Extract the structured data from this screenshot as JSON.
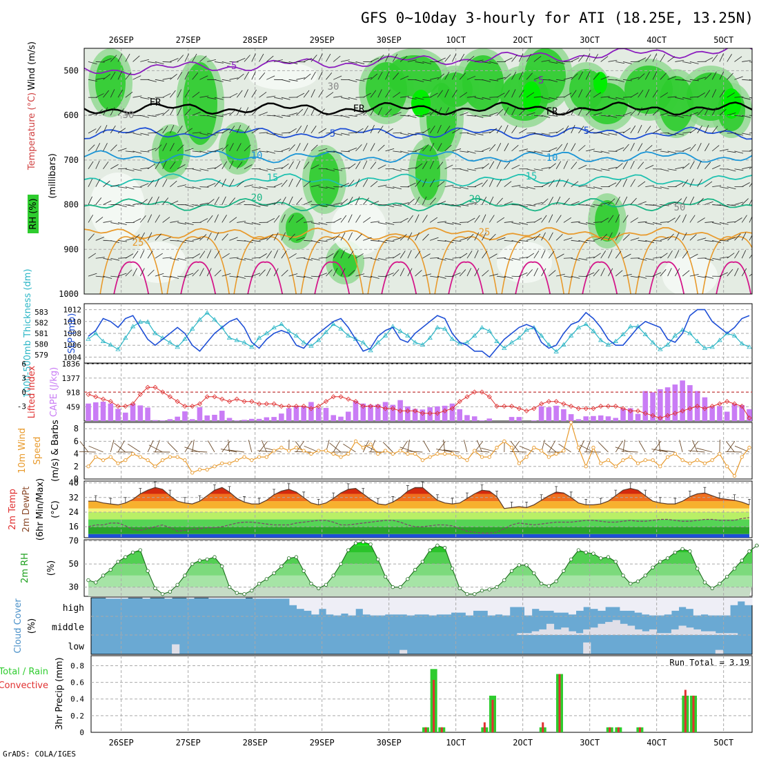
{
  "title": "GFS 0~10day 3-hourly for ATI (18.25E, 13.25N)",
  "footer": "GrADS: COLA/IGES",
  "colors": {
    "purple": "#8b1dbe",
    "blue": "#1e4fd6",
    "cyan": "#2bb6c6",
    "orange": "#e89a2c",
    "magenta": "#d4168a",
    "red": "#e03030",
    "lavender": "#c97cf5",
    "green": "#2ecc2e",
    "brightgreen": "#00ee00",
    "grid": "#a9a9a9",
    "cloudblue": "#6aa9d3",
    "cloudwhite": "#eeeef6"
  },
  "days_top": [
    "26SEP",
    "27SEP",
    "28SEP",
    "29SEP",
    "30SEP",
    "1OCT",
    "2OCT",
    "3OCT",
    "4OCT",
    "5OCT"
  ],
  "days_bottom": [
    "26SEP",
    "27SEP",
    "28SEP",
    "29SEP",
    "30SEP",
    "1OCT",
    "2OCT",
    "3OCT",
    "4OCT",
    "5OCT"
  ],
  "chart_data": [
    {
      "type": "heatmap",
      "name": "upper_air",
      "ylabel": "Wind (m/s) Temperature (°C) RH (%) (millibars)",
      "y_ticks": [
        "500",
        "600",
        "700",
        "800",
        "900",
        "1000"
      ],
      "ylim": [
        450,
        1000
      ],
      "legend_rh": "RH (%)",
      "contour_labels": [
        "-5",
        "FR",
        "5",
        "10",
        "15",
        "20",
        "25",
        "30",
        "50"
      ],
      "isotherm_levels_mb": {
        "-5": 500,
        "0": 585,
        "5": 640,
        "10": 693,
        "15": 745,
        "20": 800,
        "25": 865
      }
    },
    {
      "type": "line",
      "name": "slp_thickness",
      "ylabel_left": "1000-500mb Thickness (dm)",
      "ylabel_right": "SLP (mb)",
      "thickness_ticks": [
        "583",
        "582",
        "581",
        "580",
        "579"
      ],
      "slp_ticks": [
        "1012",
        "1010",
        "1008",
        "1006",
        "1004"
      ],
      "ylim_slp": [
        1003,
        1013
      ],
      "slp": [
        1007.5,
        1008.5,
        1010.5,
        1010,
        1009,
        1010.5,
        1011,
        1009,
        1007,
        1006,
        1007,
        1008,
        1009,
        1008,
        1006,
        1005,
        1006.5,
        1008,
        1009,
        1010,
        1010.5,
        1009,
        1006.5,
        1005.5,
        1007,
        1008,
        1008.5,
        1008,
        1006,
        1005.5,
        1007,
        1008,
        1009,
        1010,
        1010.5,
        1009,
        1007,
        1005,
        1005.5,
        1007.5,
        1008.5,
        1009,
        1007,
        1006.5,
        1008,
        1009,
        1010,
        1011,
        1010.5,
        1008,
        1006.5,
        1006,
        1005,
        1005,
        1004,
        1005.5,
        1007,
        1008,
        1009,
        1009.5,
        1009,
        1006.5,
        1005.5,
        1006,
        1008,
        1009.5,
        1010,
        1011.5,
        1010.5,
        1009,
        1007,
        1006,
        1006,
        1007.5,
        1009,
        1010,
        1009.5,
        1009,
        1007,
        1006.5,
        1008,
        1011,
        1012,
        1012,
        1010,
        1009,
        1008,
        1009,
        1010.5,
        1011
      ],
      "thickness": [
        580.5,
        581,
        580.3,
        580,
        579.6,
        580.6,
        581.6,
        582,
        582,
        581,
        580.6,
        580.2,
        579.8,
        580.5,
        581.4,
        582.2,
        582.8,
        582.2,
        581.5,
        580.6,
        580.4,
        580.2,
        579.8,
        580.6,
        581,
        581.5,
        581.8,
        581.2,
        580.8,
        580.2,
        579.9,
        580.4,
        581.1,
        581.8,
        581.4,
        580.8,
        580.5,
        580.2,
        579.5,
        580.2,
        580.8,
        581.6,
        581.2,
        580.8,
        580.2,
        580,
        580.6,
        581.5,
        581.4,
        580.5,
        580.1,
        580.2,
        580.8,
        581.5,
        581.2,
        580.3,
        579.7,
        580.2,
        580.6,
        581.3,
        581.5,
        580.8,
        580,
        579.4,
        580,
        580.8,
        581.5,
        581.8,
        581.2,
        580.4,
        580,
        580.3,
        580.9,
        581.6,
        581.6,
        580.9,
        580.2,
        579.6,
        580,
        580.8,
        581.3,
        581,
        580.3,
        579.7,
        579.8,
        580.4,
        581,
        580.8,
        580.1,
        579.8
      ]
    },
    {
      "type": "bar",
      "name": "cape_li",
      "ylabel_left": "Lifted Index",
      "ylabel_right": "CAPE (J/kg)",
      "li_ticks": [
        "-3",
        "0",
        "3",
        "6"
      ],
      "cape_ticks": [
        "1836",
        "1377",
        "918",
        "459"
      ],
      "ylim_cape": [
        0,
        1836
      ],
      "cape": [
        560,
        600,
        620,
        560,
        390,
        270,
        560,
        500,
        430,
        30,
        20,
        60,
        140,
        310,
        60,
        440,
        180,
        200,
        330,
        100,
        20,
        40,
        70,
        70,
        120,
        130,
        240,
        410,
        480,
        480,
        610,
        430,
        420,
        190,
        140,
        300,
        640,
        560,
        520,
        530,
        610,
        520,
        670,
        470,
        390,
        370,
        440,
        470,
        490,
        560,
        380,
        190,
        150,
        20,
        80,
        0,
        0,
        130,
        130,
        0,
        20,
        470,
        440,
        490,
        380,
        220,
        60,
        150,
        160,
        180,
        150,
        100,
        400,
        410,
        230,
        960,
        920,
        1020,
        1080,
        1170,
        1300,
        1150,
        960,
        760,
        460,
        480,
        300,
        550,
        510,
        380
      ],
      "li": [
        -0.5,
        -1,
        -1.5,
        -2,
        -3,
        -3,
        -2.5,
        -0.5,
        1,
        1,
        0,
        -1,
        -2,
        -3,
        -3,
        -2.5,
        -1,
        -1,
        -1.5,
        -2,
        -1.5,
        -2,
        -2,
        -2.5,
        -2.5,
        -2.5,
        -3,
        -3,
        -3,
        -3,
        -3.5,
        -3,
        -2,
        -1,
        -1,
        -1.5,
        -2,
        -3,
        -3,
        -3,
        -3.5,
        -3.5,
        -4,
        -4,
        -4,
        -4.5,
        -4.5,
        -4.5,
        -4,
        -3.5,
        -2,
        -1,
        0,
        0,
        -1,
        -3,
        -3,
        -3,
        -3.5,
        -4,
        -3.5,
        -2.5,
        -2,
        -2,
        -2.5,
        -3,
        -3.5,
        -3.5,
        -3.5,
        -3,
        -3,
        -3,
        -3.5,
        -4,
        -4,
        -4.5,
        -5,
        -5.5,
        -5,
        -4.5,
        -4,
        -3.5,
        -3,
        -3.5,
        -3,
        -2.5,
        -2,
        -2.5,
        -3,
        -5.5
      ]
    },
    {
      "type": "line",
      "name": "wind10m",
      "ylabel": "10m Wind Speed & Barbs (m/s)",
      "y_ticks": [
        "8",
        "6",
        "4",
        "2",
        "0"
      ],
      "ylim": [
        0,
        9
      ],
      "speed": [
        2,
        3.5,
        3,
        3.5,
        2.5,
        3,
        4,
        3.5,
        3,
        2,
        3,
        3.5,
        3.5,
        3,
        1,
        1.5,
        1.5,
        2,
        2.5,
        2.5,
        3,
        3.5,
        3,
        3.5,
        3.5,
        4.5,
        5,
        4.5,
        5,
        4.5,
        4,
        4.5,
        4.5,
        4,
        3.5,
        4,
        6,
        5,
        5.5,
        4,
        4.5,
        4,
        4.5,
        4,
        4,
        3,
        3.5,
        4,
        4,
        4,
        3.5,
        3,
        4.5,
        3.5,
        3.5,
        5,
        6,
        5,
        2.5,
        3.5,
        5,
        4.5,
        3.5,
        4,
        4.5,
        9,
        5,
        2,
        5,
        2.5,
        3,
        2,
        3,
        3.5,
        2.5,
        3,
        3,
        2,
        3.5,
        4,
        3,
        2.5,
        3,
        2.5,
        3,
        4,
        2,
        0.5,
        3.5,
        5
      ]
    },
    {
      "type": "area",
      "name": "temp2m",
      "ylabel": "2m Temp 2m DewPt (6hr Min/Max) (°C)",
      "y_ticks": [
        "40",
        "32",
        "24",
        "16"
      ],
      "ylim": [
        10,
        41
      ],
      "temp": [
        30,
        30,
        29,
        28.5,
        28,
        29,
        31,
        34,
        36,
        37.5,
        36.5,
        33,
        30,
        29,
        28.5,
        30,
        33,
        36,
        37.5,
        35,
        31.5,
        29.5,
        28.5,
        28.5,
        30.5,
        33.5,
        35.5,
        36.5,
        35,
        32,
        29,
        28,
        29,
        31.5,
        34.5,
        36.5,
        37,
        34,
        31,
        28.5,
        28,
        29.5,
        32,
        35.5,
        37.5,
        37.5,
        34,
        30.5,
        29,
        28.5,
        29,
        31.5,
        34,
        36,
        35.5,
        32.5,
        26,
        26.5,
        27,
        26.5,
        28,
        30.5,
        33,
        35,
        34.5,
        32,
        29,
        28,
        28,
        28.5,
        30,
        33,
        36,
        37,
        36,
        33,
        30,
        29,
        28.5,
        28.5,
        30,
        32.5,
        34,
        34.5,
        33,
        31.5,
        31,
        30.5,
        29.5,
        28
      ],
      "dewpoint": [
        16,
        17,
        17,
        18,
        18,
        16.5,
        14.5,
        14,
        15,
        16,
        17,
        15.5,
        13.5,
        14,
        14.5,
        15,
        15.5,
        15.5,
        16,
        17,
        18,
        18.5,
        18.5,
        18,
        17.5,
        17,
        17,
        17,
        18,
        18.5,
        19,
        19.5,
        19.5,
        18.5,
        17,
        17,
        17.5,
        18,
        18.5,
        19,
        19.5,
        19.5,
        18.5,
        17,
        16,
        16,
        16.5,
        17,
        17,
        16.5,
        15,
        13.5,
        13,
        12.5,
        12.5,
        13,
        15,
        17,
        18,
        17.5,
        17,
        17.5,
        18,
        18.5,
        18.5,
        18.5,
        19,
        19.5,
        19.5,
        19,
        18.5,
        18.5,
        19,
        19.5,
        19,
        19,
        19.5,
        20,
        20,
        19.5,
        19,
        19,
        19.5,
        20,
        20,
        19.5,
        19.5,
        19.5,
        20.5,
        21
      ]
    },
    {
      "type": "area",
      "name": "rh2m",
      "ylabel": "2m RH (%)",
      "y_ticks": [
        "70",
        "50",
        "30"
      ],
      "ylim": [
        22,
        71
      ],
      "rh": [
        36,
        34,
        40,
        45,
        52,
        56,
        60,
        62,
        44,
        29,
        24,
        26,
        32,
        40,
        50,
        53,
        54,
        56,
        48,
        30,
        25,
        24,
        27,
        33,
        37,
        42,
        48,
        55,
        56,
        44,
        33,
        29,
        32,
        40,
        50,
        62,
        68,
        69,
        67,
        54,
        39,
        30,
        30,
        37,
        45,
        52,
        62,
        66,
        64,
        46,
        29,
        24,
        24,
        27,
        28,
        30,
        36,
        44,
        49,
        49,
        42,
        33,
        31,
        35,
        44,
        54,
        62,
        60,
        59,
        55,
        56,
        52,
        40,
        33,
        35,
        40,
        47,
        52,
        55,
        60,
        63,
        61,
        46,
        34,
        29,
        33,
        39,
        46,
        53,
        61,
        66,
        65
      ],
      "bands": [
        30,
        40,
        50,
        60,
        70
      ]
    },
    {
      "type": "table",
      "name": "cloud_cover",
      "ylabel": "Cloud Cover (%)",
      "levels": [
        "high",
        "middle",
        "low"
      ]
    },
    {
      "type": "bar",
      "name": "precip",
      "ylabel": "3hr Precip (mm)",
      "legend_total": "Total / Rain",
      "legend_conv": "Convective",
      "run_total": "Run Total = 3.19",
      "y_ticks": [
        "0.8",
        "0.6",
        "0.4",
        "0.2",
        "0"
      ],
      "ylim": [
        0,
        0.92
      ],
      "bars": [
        {
          "x": 5.0,
          "total": 0.06,
          "conv": 0.06
        },
        {
          "x": 5.12,
          "total": 0.76,
          "conv": 0.63
        },
        {
          "x": 5.24,
          "total": 0.06,
          "conv": 0.06
        },
        {
          "x": 5.88,
          "total": 0.06,
          "conv": 0.12
        },
        {
          "x": 6.0,
          "total": 0.44,
          "conv": 0.39
        },
        {
          "x": 6.75,
          "total": 0.06,
          "conv": 0.12
        },
        {
          "x": 7.0,
          "total": 0.7,
          "conv": 0.7
        },
        {
          "x": 7.75,
          "total": 0.06,
          "conv": 0.06
        },
        {
          "x": 7.88,
          "total": 0.06,
          "conv": 0.06
        },
        {
          "x": 8.2,
          "total": 0.06,
          "conv": 0.06
        },
        {
          "x": 8.88,
          "total": 0.44,
          "conv": 0.51
        },
        {
          "x": 9.0,
          "total": 0.44,
          "conv": 0.44
        }
      ]
    }
  ]
}
